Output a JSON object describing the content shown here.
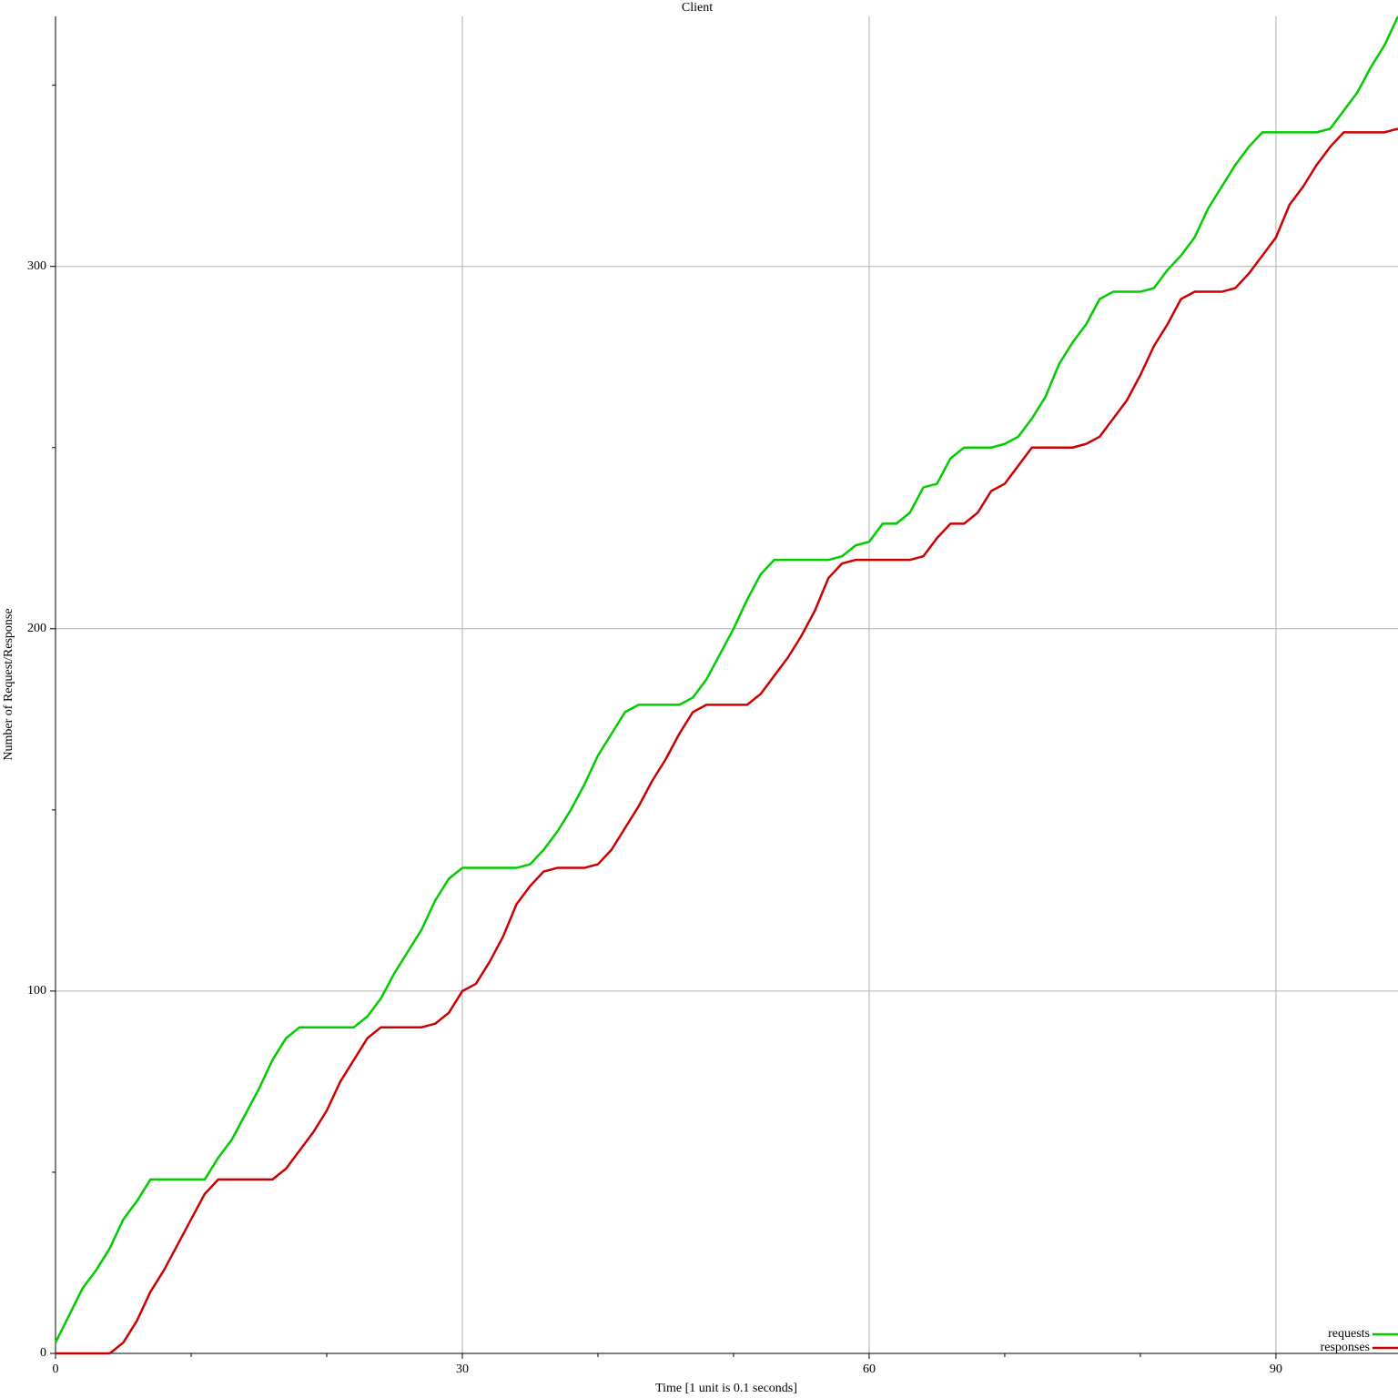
{
  "chart_data": {
    "type": "line",
    "title": "Client",
    "xlabel": "Time [1 unit is 0.1 seconds]",
    "ylabel": "Number of Request/Response",
    "x": [
      0,
      1,
      2,
      3,
      4,
      5,
      6,
      7,
      8,
      9,
      10,
      11,
      12,
      13,
      14,
      15,
      16,
      17,
      18,
      19,
      20,
      21,
      22,
      23,
      24,
      25,
      26,
      27,
      28,
      29,
      30,
      31,
      32,
      33,
      34,
      35,
      36,
      37,
      38,
      39,
      40,
      41,
      42,
      43,
      44,
      45,
      46,
      47,
      48,
      49,
      50,
      51,
      52,
      53,
      54,
      55,
      56,
      57,
      58,
      59,
      60,
      61,
      62,
      63,
      64,
      65,
      66,
      67,
      68,
      69,
      70,
      71,
      72,
      73,
      74,
      75,
      76,
      77,
      78,
      79,
      80,
      81,
      82,
      83,
      84,
      85,
      86,
      87,
      88,
      89,
      90,
      91,
      92,
      93,
      94,
      95,
      96,
      97,
      98,
      99
    ],
    "series": [
      {
        "name": "requests",
        "color": "#00cc00",
        "values": [
          3,
          10.5,
          18,
          23,
          29,
          37,
          42,
          48,
          48,
          48,
          48,
          48,
          54,
          59,
          66,
          73,
          81,
          87,
          90,
          90,
          90,
          90,
          90,
          93,
          98,
          105,
          111,
          117,
          125,
          131,
          134,
          134,
          134,
          134,
          134,
          135,
          139,
          144,
          150,
          157,
          165,
          171,
          177,
          179,
          179,
          179,
          179,
          181,
          186,
          193,
          200,
          208,
          215,
          219,
          219,
          219,
          219,
          219,
          220,
          223,
          224,
          229,
          229,
          232,
          239,
          240,
          247,
          250,
          250,
          250,
          251,
          253,
          258,
          264,
          273,
          279,
          284,
          291,
          293,
          293,
          293,
          294,
          299,
          303,
          308,
          316,
          322,
          328,
          333,
          337,
          337,
          337,
          337,
          337,
          338,
          343,
          348,
          355,
          361,
          369
        ]
      },
      {
        "name": "responses",
        "color": "#cc0000",
        "values": [
          0,
          0,
          0,
          0,
          0,
          3,
          9,
          17,
          23,
          30,
          37,
          44,
          48,
          48,
          48,
          48,
          48,
          51,
          56,
          61,
          67,
          75,
          81,
          87,
          90,
          90,
          90,
          90,
          91,
          94,
          100,
          102,
          108,
          115,
          124,
          129,
          133,
          134,
          134,
          134,
          135,
          139,
          145,
          151,
          158,
          164,
          171,
          177,
          179,
          179,
          179,
          179,
          182,
          187,
          192,
          198,
          205,
          214,
          218,
          219,
          219,
          219,
          219,
          219,
          220,
          225,
          229,
          229,
          232,
          238,
          240,
          245,
          250,
          250,
          250,
          250,
          251,
          253,
          258,
          263,
          270,
          278,
          284,
          291,
          293,
          293,
          293,
          294,
          298,
          303,
          308,
          317,
          322,
          328,
          333,
          337,
          337,
          337,
          337,
          338
        ]
      }
    ],
    "xlim": [
      0,
      99
    ],
    "ylim": [
      0,
      369
    ],
    "xticks": [
      0,
      30,
      60,
      90
    ],
    "yticks": [
      0,
      100,
      200,
      300
    ],
    "x_minor_ticks": [
      10,
      20,
      40,
      50,
      70,
      80
    ],
    "y_minor_ticks": [
      50,
      150,
      250,
      350
    ],
    "grid": true,
    "legend": "bottom right"
  }
}
